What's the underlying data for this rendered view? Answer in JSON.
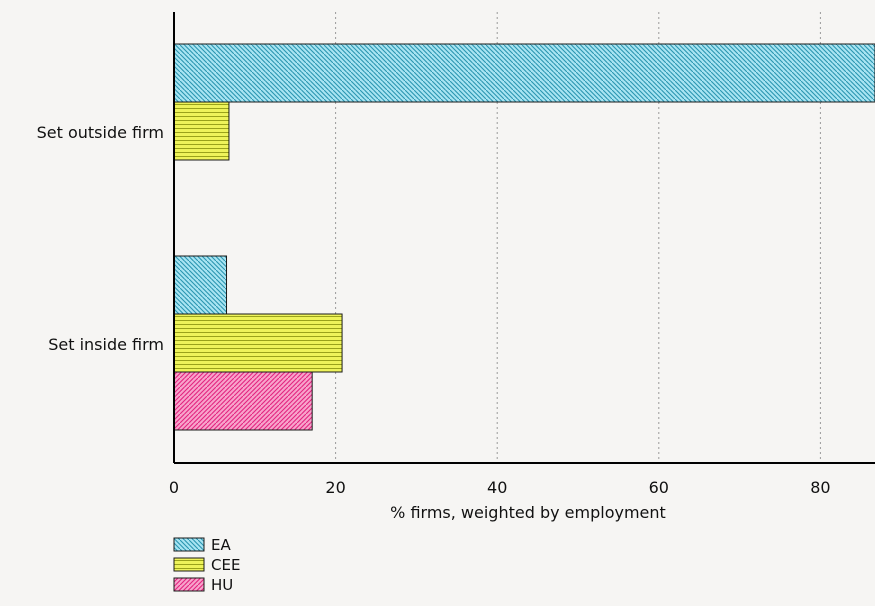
{
  "chart_data": {
    "type": "bar",
    "orientation": "horizontal",
    "categories": [
      "Set outside firm",
      "Set inside firm"
    ],
    "series": [
      {
        "name": "EA",
        "values": [
          87,
          6.5
        ],
        "color": "#a8e4f2",
        "stroke": "#2a95b0",
        "hatch": "backslash"
      },
      {
        "name": "CEE",
        "values": [
          6.8,
          20.8
        ],
        "color": "#eef35a",
        "stroke": "#9aa21a",
        "hatch": "horizontal"
      },
      {
        "name": "HU",
        "values": [
          null,
          17.1
        ],
        "color": "#f8a3cb",
        "stroke": "#e2237f",
        "hatch": "slash"
      }
    ],
    "xlabel": "% firms, weighted by employment",
    "ylabel": "",
    "xlim": [
      0,
      87
    ],
    "xticks": [
      0,
      20,
      40,
      60,
      80
    ],
    "grid": "vertical dotted",
    "legend_position": "bottom-left"
  }
}
